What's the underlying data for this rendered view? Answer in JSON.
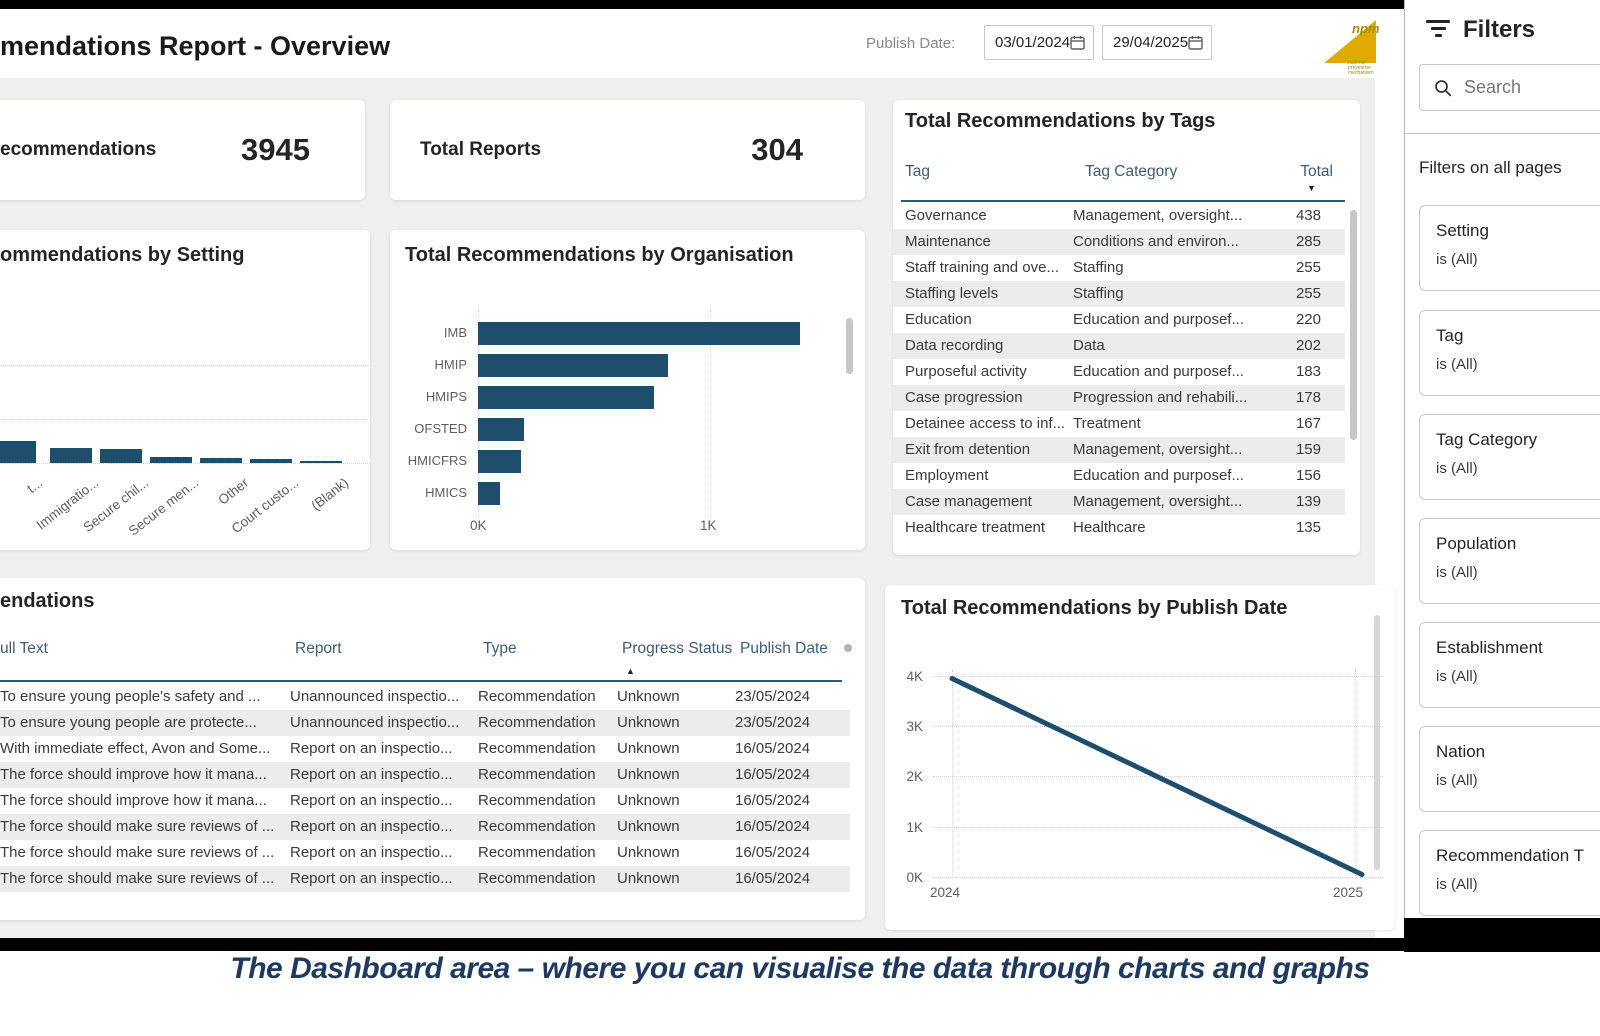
{
  "page": {
    "caption": "The Dashboard area – where you can visualise the data through charts and graphs"
  },
  "header": {
    "title": "mendations Report - Overview",
    "publish_date_label": "Publish Date:",
    "date_from": "03/01/2024",
    "date_to": "29/04/2025",
    "logo": {
      "text": "npm",
      "subtext": "national preventive mechanism"
    }
  },
  "kpis": [
    {
      "label": "ecommendations",
      "value": "3945"
    },
    {
      "label": "Total Reports",
      "value": "304"
    }
  ],
  "tags_table": {
    "title": "Total Recommendations by Tags",
    "columns": [
      "Tag",
      "Tag Category",
      "Total"
    ],
    "sort_column": "Total",
    "sort_glyph": "▼",
    "rows": [
      [
        "Governance",
        "Management, oversight...",
        "438"
      ],
      [
        "Maintenance",
        "Conditions and environ...",
        "285"
      ],
      [
        "Staff training and ove...",
        "Staffing",
        "255"
      ],
      [
        "Staffing levels",
        "Staffing",
        "255"
      ],
      [
        "Education",
        "Education and purposef...",
        "220"
      ],
      [
        "Data recording",
        "Data",
        "202"
      ],
      [
        "Purposeful activity",
        "Education and purposef...",
        "183"
      ],
      [
        "Case progression",
        "Progression and rehabili...",
        "178"
      ],
      [
        "Detainee access to inf...",
        "Treatment",
        "167"
      ],
      [
        "Exit from detention",
        "Management, oversight...",
        "159"
      ],
      [
        "Employment",
        "Education and purposef...",
        "156"
      ],
      [
        "Case management",
        "Management, oversight...",
        "139"
      ],
      [
        "Healthcare treatment",
        "Healthcare",
        "135"
      ]
    ]
  },
  "recommendations_table": {
    "title": "endations",
    "columns": [
      "ull Text",
      "Report",
      "Type",
      "Progress Status",
      "Publish Date"
    ],
    "sort_column": "Progress Status",
    "sort_glyph": "▲",
    "rows": [
      [
        "To ensure young people's safety and ...",
        "Unannounced inspectio...",
        "Recommendation",
        "Unknown",
        "23/05/2024"
      ],
      [
        "To ensure young people are protecte...",
        "Unannounced inspectio...",
        "Recommendation",
        "Unknown",
        "23/05/2024"
      ],
      [
        "With immediate effect, Avon and Some...",
        "Report on an inspectio...",
        "Recommendation",
        "Unknown",
        "16/05/2024"
      ],
      [
        "The force should improve how it mana...",
        "Report on an inspectio...",
        "Recommendation",
        "Unknown",
        "16/05/2024"
      ],
      [
        "The force should improve how it mana...",
        "Report on an inspectio...",
        "Recommendation",
        "Unknown",
        "16/05/2024"
      ],
      [
        "The force should make sure reviews of ...",
        "Report on an inspectio...",
        "Recommendation",
        "Unknown",
        "16/05/2024"
      ],
      [
        "The force should make sure reviews of ...",
        "Report on an inspectio...",
        "Recommendation",
        "Unknown",
        "16/05/2024"
      ],
      [
        "The force should make sure reviews of ...",
        "Report on an inspectio...",
        "Recommendation",
        "Unknown",
        "16/05/2024"
      ]
    ]
  },
  "chart_data": [
    {
      "id": "by_setting",
      "type": "bar",
      "title": "ommendations by Setting",
      "categories": [
        "t...",
        "Immigratio...",
        "Secure chil...",
        "Secure men...",
        "Other",
        "Court custo...",
        "(Blank)"
      ],
      "values": [
        200,
        140,
        130,
        55,
        45,
        40,
        12
      ],
      "grid": true,
      "legend": "none"
    },
    {
      "id": "by_organisation",
      "type": "bar",
      "title": "Total Recommendations by Organisation",
      "categories": [
        "IMB",
        "HMIP",
        "HMIPS",
        "OFSTED",
        "HMICFRS",
        "HMICS"
      ],
      "values": [
        1390,
        820,
        760,
        200,
        185,
        95
      ],
      "orientation": "horizontal",
      "x_ticks": [
        "0K",
        "1K"
      ],
      "xlim": [
        0,
        1600
      ],
      "grid": true,
      "legend": "none"
    },
    {
      "id": "by_publish_date",
      "type": "line",
      "title": "Total Recommendations by Publish Date",
      "x": [
        "2024",
        "2025"
      ],
      "values": [
        3950,
        50
      ],
      "y_ticks": [
        "0K",
        "1K",
        "2K",
        "3K",
        "4K"
      ],
      "ylim": [
        0,
        4000
      ],
      "grid": true,
      "legend": "none"
    }
  ],
  "filters_panel": {
    "title": "Filters",
    "search_placeholder": "Search",
    "section_label": "Filters on all pages",
    "filters": [
      {
        "name": "Setting",
        "value": "is (All)"
      },
      {
        "name": "Tag",
        "value": "is (All)"
      },
      {
        "name": "Tag Category",
        "value": "is (All)"
      },
      {
        "name": "Population",
        "value": "is (All)"
      },
      {
        "name": "Establishment",
        "value": "is (All)"
      },
      {
        "name": "Nation",
        "value": "is (All)"
      },
      {
        "name": "Recommendation T",
        "value": "is (All)"
      }
    ]
  },
  "colors": {
    "accent": "#1d4e6b",
    "caption": "#1e3a60",
    "logo_yellow": "#dfab00",
    "alt_row": "#ececec",
    "dashboard_bg": "#f0efee",
    "header_underline": "#2a5a7d"
  }
}
